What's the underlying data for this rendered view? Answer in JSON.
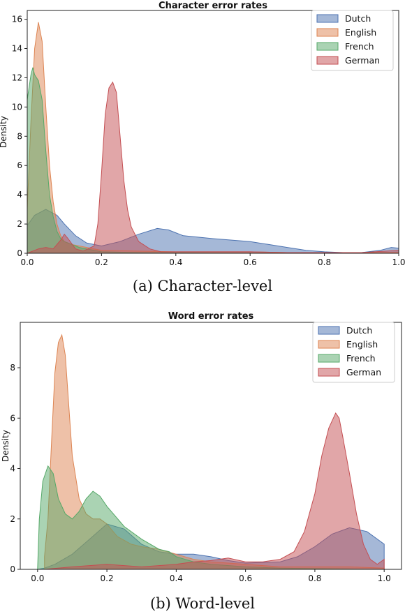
{
  "captions": [
    "(a) Character-level",
    "(b) Word-level"
  ],
  "chart_data": [
    {
      "type": "area",
      "title": "Character error rates",
      "xlabel": "",
      "ylabel": "Density",
      "xlim": [
        0.0,
        1.0
      ],
      "ylim": [
        0,
        16.6
      ],
      "xticks": [
        "0.0",
        "0.2",
        "0.4",
        "0.6",
        "0.8",
        "1.0"
      ],
      "yticks": [
        "0",
        "2",
        "4",
        "6",
        "8",
        "10",
        "12",
        "14",
        "16"
      ],
      "legend_position": "top-right",
      "grid": false,
      "series": [
        {
          "name": "Dutch",
          "color": "#4c72b0",
          "points": [
            [
              0.0,
              1.9
            ],
            [
              0.02,
              2.6
            ],
            [
              0.05,
              3.0
            ],
            [
              0.08,
              2.6
            ],
            [
              0.1,
              2.0
            ],
            [
              0.13,
              1.2
            ],
            [
              0.16,
              0.7
            ],
            [
              0.2,
              0.5
            ],
            [
              0.25,
              0.8
            ],
            [
              0.3,
              1.3
            ],
            [
              0.35,
              1.7
            ],
            [
              0.38,
              1.6
            ],
            [
              0.42,
              1.2
            ],
            [
              0.5,
              1.0
            ],
            [
              0.6,
              0.8
            ],
            [
              0.65,
              0.6
            ],
            [
              0.7,
              0.4
            ],
            [
              0.75,
              0.2
            ],
            [
              0.8,
              0.1
            ],
            [
              0.85,
              0.05
            ],
            [
              0.9,
              0.05
            ],
            [
              0.95,
              0.2
            ],
            [
              0.98,
              0.4
            ],
            [
              1.0,
              0.35
            ]
          ]
        },
        {
          "name": "English",
          "color": "#dd8452",
          "points": [
            [
              0.0,
              3.0
            ],
            [
              0.01,
              9.0
            ],
            [
              0.02,
              14.0
            ],
            [
              0.03,
              15.8
            ],
            [
              0.04,
              14.5
            ],
            [
              0.05,
              10.0
            ],
            [
              0.06,
              6.0
            ],
            [
              0.07,
              3.5
            ],
            [
              0.08,
              2.0
            ],
            [
              0.09,
              1.2
            ],
            [
              0.1,
              0.8
            ],
            [
              0.12,
              0.6
            ],
            [
              0.14,
              0.5
            ],
            [
              0.16,
              0.4
            ],
            [
              0.18,
              0.3
            ],
            [
              0.2,
              0.2
            ],
            [
              0.3,
              0.15
            ],
            [
              0.4,
              0.1
            ],
            [
              0.5,
              0.1
            ],
            [
              0.6,
              0.1
            ],
            [
              0.7,
              0.05
            ],
            [
              0.8,
              0.05
            ],
            [
              0.9,
              0.05
            ],
            [
              1.0,
              0.05
            ]
          ]
        },
        {
          "name": "French",
          "color": "#55a868",
          "points": [
            [
              0.0,
              10.5
            ],
            [
              0.01,
              12.2
            ],
            [
              0.015,
              12.7
            ],
            [
              0.02,
              12.2
            ],
            [
              0.03,
              11.8
            ],
            [
              0.04,
              10.5
            ],
            [
              0.05,
              7.0
            ],
            [
              0.06,
              4.0
            ],
            [
              0.07,
              2.5
            ],
            [
              0.08,
              1.5
            ],
            [
              0.09,
              1.0
            ],
            [
              0.1,
              0.8
            ],
            [
              0.12,
              0.6
            ],
            [
              0.14,
              0.4
            ],
            [
              0.16,
              0.3
            ],
            [
              0.18,
              0.2
            ],
            [
              0.2,
              0.1
            ],
            [
              0.3,
              0.05
            ],
            [
              0.5,
              0.02
            ],
            [
              0.7,
              0.01
            ],
            [
              1.0,
              0.0
            ]
          ]
        },
        {
          "name": "German",
          "color": "#c44e52",
          "points": [
            [
              0.0,
              0.0
            ],
            [
              0.03,
              0.3
            ],
            [
              0.05,
              0.4
            ],
            [
              0.07,
              0.3
            ],
            [
              0.09,
              0.9
            ],
            [
              0.1,
              1.3
            ],
            [
              0.11,
              1.0
            ],
            [
              0.13,
              0.3
            ],
            [
              0.15,
              0.15
            ],
            [
              0.18,
              0.5
            ],
            [
              0.19,
              2.0
            ],
            [
              0.2,
              5.5
            ],
            [
              0.21,
              9.5
            ],
            [
              0.22,
              11.3
            ],
            [
              0.23,
              11.7
            ],
            [
              0.24,
              11.0
            ],
            [
              0.25,
              8.0
            ],
            [
              0.26,
              5.0
            ],
            [
              0.27,
              3.0
            ],
            [
              0.28,
              1.8
            ],
            [
              0.3,
              0.8
            ],
            [
              0.33,
              0.3
            ],
            [
              0.36,
              0.1
            ],
            [
              0.4,
              0.1
            ],
            [
              0.5,
              0.1
            ],
            [
              0.6,
              0.1
            ],
            [
              0.7,
              0.05
            ],
            [
              0.8,
              0.05
            ],
            [
              0.9,
              0.05
            ],
            [
              1.0,
              0.2
            ]
          ]
        }
      ]
    },
    {
      "type": "area",
      "title": "Word error rates",
      "xlabel": "",
      "ylabel": "Density",
      "xlim": [
        -0.05,
        1.05
      ],
      "ylim": [
        0,
        9.8
      ],
      "xticks": [
        "0.0",
        "0.2",
        "0.4",
        "0.6",
        "0.8",
        "1.0"
      ],
      "yticks": [
        "0",
        "2",
        "4",
        "6",
        "8"
      ],
      "legend_position": "top-right",
      "grid": false,
      "series": [
        {
          "name": "Dutch",
          "color": "#4c72b0",
          "points": [
            [
              0.0,
              0.0
            ],
            [
              0.02,
              0.05
            ],
            [
              0.05,
              0.2
            ],
            [
              0.1,
              0.6
            ],
            [
              0.15,
              1.2
            ],
            [
              0.2,
              1.8
            ],
            [
              0.25,
              1.6
            ],
            [
              0.3,
              1.0
            ],
            [
              0.35,
              0.7
            ],
            [
              0.4,
              0.6
            ],
            [
              0.45,
              0.6
            ],
            [
              0.5,
              0.5
            ],
            [
              0.55,
              0.35
            ],
            [
              0.6,
              0.25
            ],
            [
              0.7,
              0.3
            ],
            [
              0.75,
              0.5
            ],
            [
              0.8,
              0.9
            ],
            [
              0.85,
              1.4
            ],
            [
              0.9,
              1.65
            ],
            [
              0.95,
              1.5
            ],
            [
              1.0,
              1.0
            ]
          ]
        },
        {
          "name": "English",
          "color": "#dd8452",
          "points": [
            [
              0.02,
              0.5
            ],
            [
              0.03,
              2.0
            ],
            [
              0.04,
              5.0
            ],
            [
              0.05,
              7.8
            ],
            [
              0.06,
              9.0
            ],
            [
              0.07,
              9.3
            ],
            [
              0.08,
              8.5
            ],
            [
              0.09,
              6.5
            ],
            [
              0.1,
              4.5
            ],
            [
              0.12,
              2.8
            ],
            [
              0.14,
              2.2
            ],
            [
              0.16,
              2.0
            ],
            [
              0.18,
              2.0
            ],
            [
              0.2,
              1.8
            ],
            [
              0.23,
              1.3
            ],
            [
              0.27,
              1.0
            ],
            [
              0.3,
              0.9
            ],
            [
              0.35,
              0.8
            ],
            [
              0.4,
              0.6
            ],
            [
              0.45,
              0.4
            ],
            [
              0.5,
              0.3
            ],
            [
              0.6,
              0.2
            ],
            [
              0.7,
              0.1
            ],
            [
              0.8,
              0.1
            ],
            [
              0.9,
              0.1
            ],
            [
              1.0,
              0.05
            ]
          ]
        },
        {
          "name": "French",
          "color": "#55a868",
          "points": [
            [
              0.0,
              0.0
            ],
            [
              0.005,
              2.0
            ],
            [
              0.015,
              3.5
            ],
            [
              0.03,
              4.1
            ],
            [
              0.045,
              3.8
            ],
            [
              0.06,
              2.8
            ],
            [
              0.08,
              2.2
            ],
            [
              0.1,
              2.0
            ],
            [
              0.12,
              2.3
            ],
            [
              0.14,
              2.8
            ],
            [
              0.16,
              3.1
            ],
            [
              0.18,
              2.9
            ],
            [
              0.2,
              2.5
            ],
            [
              0.25,
              1.7
            ],
            [
              0.3,
              1.2
            ],
            [
              0.35,
              0.8
            ],
            [
              0.38,
              0.7
            ],
            [
              0.4,
              0.5
            ],
            [
              0.45,
              0.3
            ],
            [
              0.5,
              0.2
            ],
            [
              0.6,
              0.1
            ],
            [
              0.7,
              0.05
            ],
            [
              0.8,
              0.03
            ],
            [
              1.0,
              0.0
            ]
          ]
        },
        {
          "name": "German",
          "color": "#c44e52",
          "points": [
            [
              0.02,
              0.0
            ],
            [
              0.1,
              0.1
            ],
            [
              0.15,
              0.15
            ],
            [
              0.2,
              0.2
            ],
            [
              0.25,
              0.15
            ],
            [
              0.3,
              0.1
            ],
            [
              0.35,
              0.15
            ],
            [
              0.4,
              0.2
            ],
            [
              0.45,
              0.3
            ],
            [
              0.5,
              0.35
            ],
            [
              0.55,
              0.45
            ],
            [
              0.6,
              0.3
            ],
            [
              0.65,
              0.3
            ],
            [
              0.7,
              0.4
            ],
            [
              0.74,
              0.7
            ],
            [
              0.77,
              1.5
            ],
            [
              0.8,
              3.0
            ],
            [
              0.82,
              4.5
            ],
            [
              0.84,
              5.6
            ],
            [
              0.86,
              6.2
            ],
            [
              0.87,
              6.0
            ],
            [
              0.88,
              5.3
            ],
            [
              0.9,
              3.8
            ],
            [
              0.92,
              2.2
            ],
            [
              0.94,
              1.0
            ],
            [
              0.96,
              0.4
            ],
            [
              0.98,
              0.2
            ],
            [
              1.0,
              0.4
            ]
          ]
        }
      ]
    }
  ]
}
